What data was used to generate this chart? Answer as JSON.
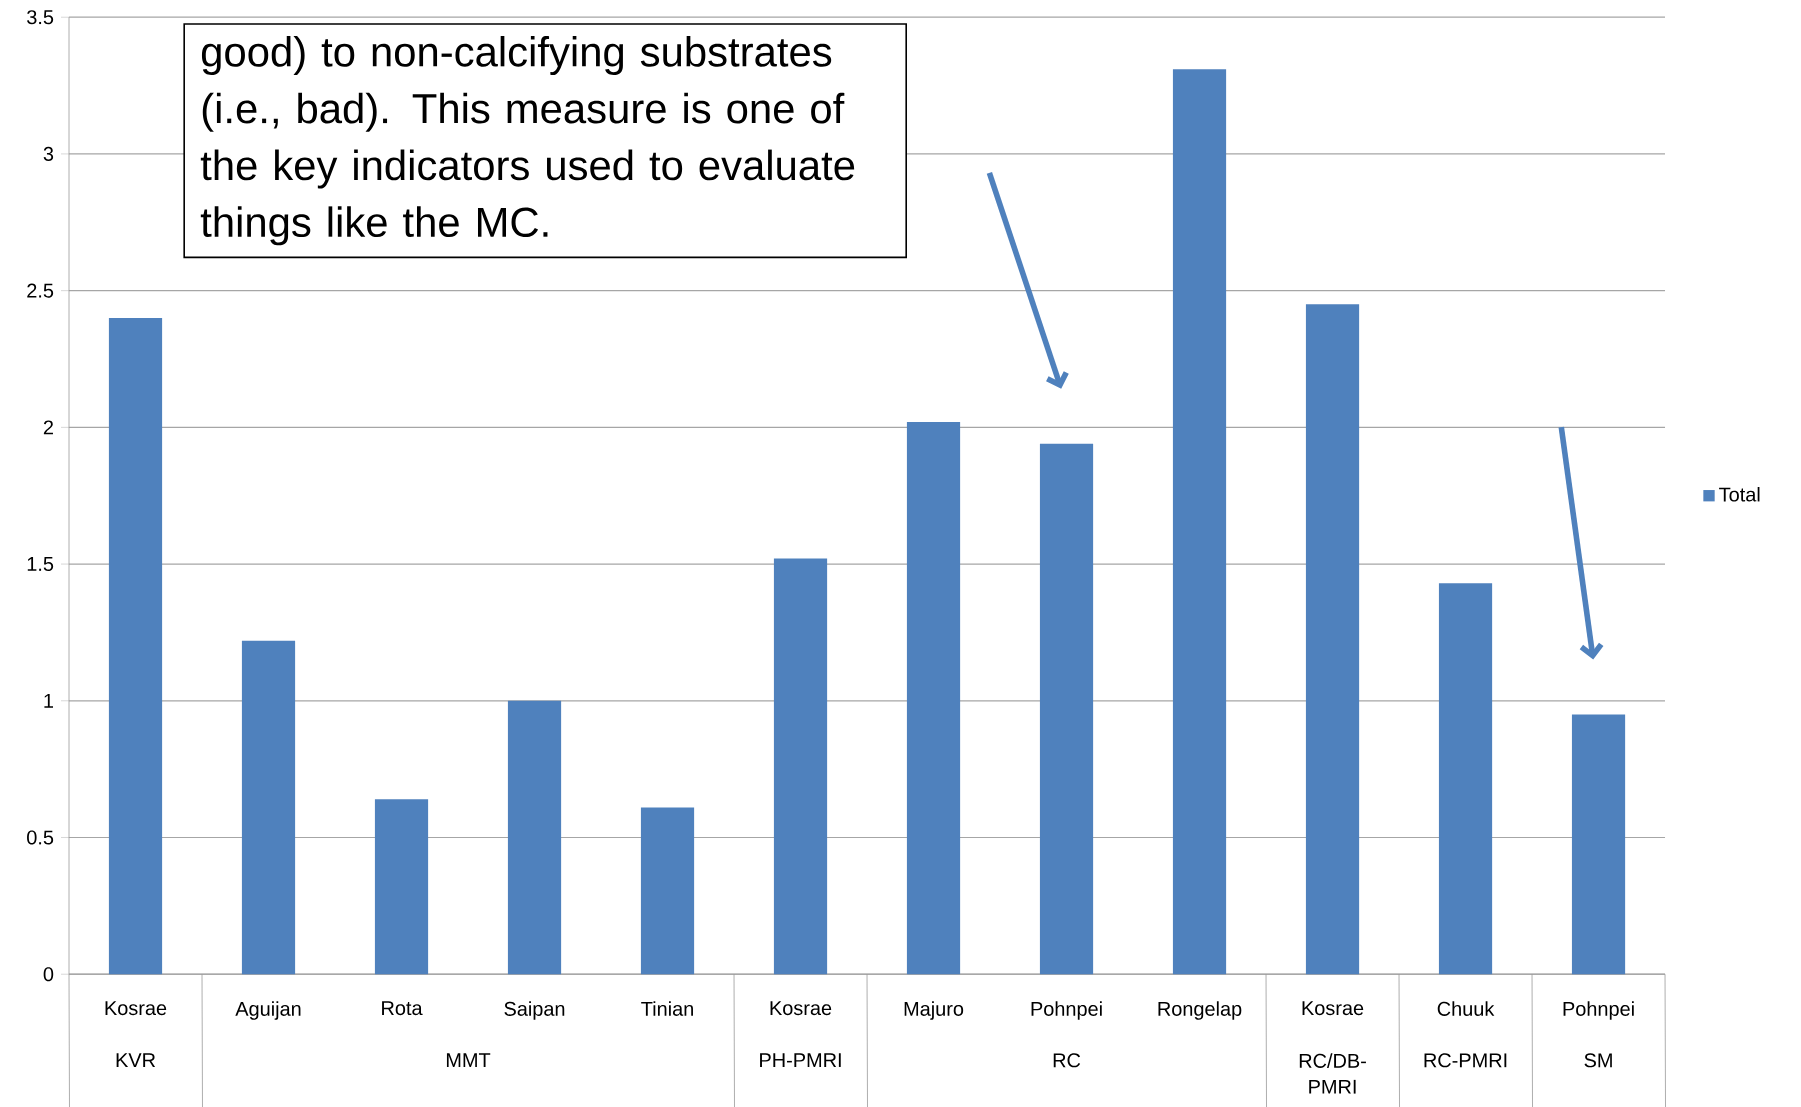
{
  "chart_data": {
    "type": "bar",
    "categories": [
      "Kosrae",
      "Aguijan",
      "Rota",
      "Saipan",
      "Tinian",
      "Kosrae",
      "Majuro",
      "Pohnpei",
      "Rongelap",
      "Kosrae",
      "Chuuk",
      "Pohnpei"
    ],
    "series": [
      {
        "name": "Total",
        "color": "#4f81bd",
        "values": [
          2.4,
          1.22,
          0.64,
          1.0,
          0.61,
          1.52,
          2.02,
          1.94,
          3.31,
          2.45,
          1.43,
          0.95
        ]
      }
    ],
    "ylim": [
      0,
      3.5
    ],
    "yticks": [
      0,
      0.5,
      1,
      1.5,
      2,
      2.5,
      3,
      3.5
    ],
    "grid": "y",
    "legend": "right",
    "annotations": [
      "good) to non-calcifying substrates (i.e., bad).  This measure is one of the key indicators used to evaluate things like the MC.",
      "KVR",
      "MMT",
      "PH-PMRI",
      "RC",
      "RC/DB-PMRI",
      "RC-PMRI",
      "SM"
    ]
  }
}
